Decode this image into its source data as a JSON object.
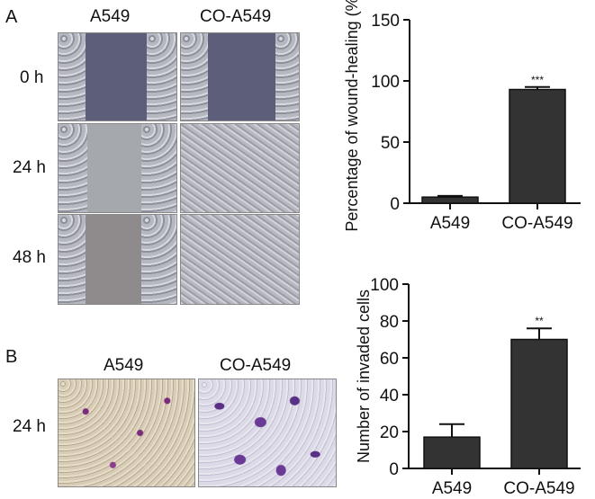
{
  "panel_a": {
    "letter": "A",
    "col_labels": [
      "A549",
      "CO-A549"
    ],
    "row_labels": [
      "0 h",
      "24 h",
      "48 h"
    ]
  },
  "panel_b": {
    "letter": "B",
    "col_labels": [
      "A549",
      "CO-A549"
    ],
    "row_label": "24 h"
  },
  "chart_data": [
    {
      "type": "bar",
      "categories": [
        "A549",
        "CO-A549"
      ],
      "values": [
        5,
        93
      ],
      "errors": [
        1,
        2
      ],
      "significance": [
        "",
        "***"
      ],
      "ylabel": "Percentage of wound-healing (%)",
      "xlabel": "",
      "title": "",
      "ylim": [
        0,
        150
      ],
      "yticks": [
        0,
        50,
        100,
        150
      ],
      "bar_color": "#333333",
      "grid": false
    },
    {
      "type": "bar",
      "categories": [
        "A549",
        "CO-A549"
      ],
      "values": [
        17,
        70
      ],
      "errors": [
        7,
        6
      ],
      "significance": [
        "",
        "**"
      ],
      "ylabel": "Number of invaded cells",
      "xlabel": "",
      "title": "",
      "ylim": [
        0,
        100
      ],
      "yticks": [
        0,
        20,
        40,
        60,
        80,
        100
      ],
      "bar_color": "#333333",
      "grid": false
    }
  ]
}
